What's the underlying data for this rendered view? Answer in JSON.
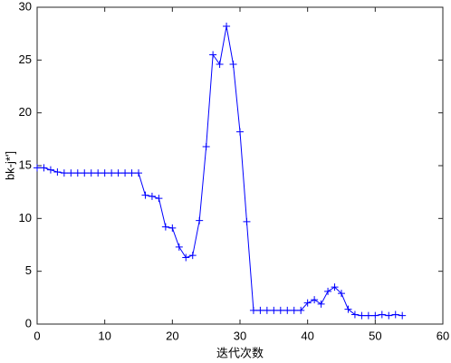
{
  "chart_data": {
    "type": "line",
    "x_label": "迭代次数",
    "y_label": "bk-j*']",
    "x": [
      0,
      1,
      2,
      3,
      4,
      5,
      6,
      7,
      8,
      9,
      10,
      11,
      12,
      13,
      14,
      15,
      16,
      17,
      18,
      19,
      20,
      21,
      22,
      23,
      24,
      25,
      26,
      27,
      28,
      29,
      30,
      31,
      32,
      33,
      34,
      35,
      36,
      37,
      38,
      39,
      40,
      41,
      42,
      43,
      44,
      45,
      46,
      47,
      48,
      49,
      50,
      51,
      52,
      53,
      54
    ],
    "series": [
      {
        "color": "#0000ff",
        "marker": "+",
        "values": [
          14.8,
          14.8,
          14.6,
          14.4,
          14.3,
          14.3,
          14.3,
          14.3,
          14.3,
          14.3,
          14.3,
          14.3,
          14.3,
          14.3,
          14.3,
          14.3,
          12.2,
          12.1,
          11.9,
          9.2,
          9.1,
          7.3,
          6.3,
          6.5,
          9.8,
          16.8,
          25.5,
          24.6,
          28.2,
          24.6,
          18.2,
          9.7,
          1.3,
          1.3,
          1.3,
          1.3,
          1.3,
          1.3,
          1.3,
          1.3,
          2.0,
          2.3,
          1.9,
          3.1,
          3.5,
          2.9,
          1.4,
          0.9,
          0.8,
          0.8,
          0.8,
          0.9,
          0.8,
          0.9,
          0.8
        ]
      }
    ],
    "xlim": [
      0,
      60
    ],
    "ylim": [
      0,
      30
    ],
    "xticks": [
      0,
      10,
      20,
      30,
      40,
      50,
      60
    ],
    "yticks": [
      0,
      5,
      10,
      15,
      20,
      25,
      30
    ]
  }
}
